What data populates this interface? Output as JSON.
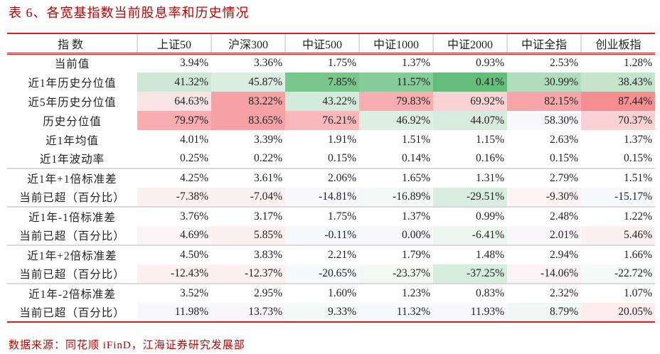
{
  "title": "表 6、各宽基指数当前股息率和历史情况",
  "header": [
    "指数",
    "上证50",
    "沪深300",
    "中证500",
    "中证1000",
    "中证2000",
    "中证全指",
    "创业板指"
  ],
  "rows": [
    {
      "label": "当前值",
      "values": [
        "3.94%",
        "3.36%",
        "1.75%",
        "1.37%",
        "0.93%",
        "2.53%",
        "1.28%"
      ],
      "colors": [
        "",
        "",
        "",
        "",
        "",
        "",
        ""
      ]
    },
    {
      "label": "近1年历史分位值",
      "values": [
        "41.32%",
        "45.87%",
        "7.85%",
        "11.57%",
        "0.41%",
        "30.99%",
        "38.43%"
      ],
      "colors": [
        "#cfe8d6",
        "#dcede2",
        "#78c68c",
        "#86cc98",
        "#64bd7a",
        "#b1dcbd",
        "#c4e4cc"
      ]
    },
    {
      "label": "近5年历史分位值",
      "values": [
        "64.63%",
        "83.22%",
        "43.22%",
        "79.83%",
        "69.92%",
        "82.15%",
        "87.44%"
      ],
      "colors": [
        "#fbe4e6",
        "#f6a1a4",
        "#d4ebdb",
        "#f8adb0",
        "#fbd3d5",
        "#f7a5a8",
        "#f58e91"
      ]
    },
    {
      "label": "历史分位值",
      "values": [
        "79.97%",
        "83.65%",
        "76.21%",
        "46.92%",
        "44.07%",
        "58.30%",
        "70.37%"
      ],
      "colors": [
        "#f8adb0",
        "#f6a1a4",
        "#f9b9bc",
        "#deeee3",
        "#d7ecdd",
        "#f9f9fd",
        "#fbd1d3"
      ]
    },
    {
      "label": "近1年均值",
      "values": [
        "4.01%",
        "3.39%",
        "1.91%",
        "1.51%",
        "1.15%",
        "2.63%",
        "1.37%"
      ],
      "colors": [
        "",
        "",
        "",
        "",
        "",
        "",
        ""
      ]
    },
    {
      "label": "近1年波动率",
      "values": [
        "0.25%",
        "0.22%",
        "0.15%",
        "0.14%",
        "0.16%",
        "0.15%",
        "0.15%"
      ],
      "colors": [
        "",
        "",
        "",
        "",
        "",
        "",
        ""
      ]
    },
    {
      "label": "近1年+1倍标准差",
      "values": [
        "4.25%",
        "3.61%",
        "2.06%",
        "1.65%",
        "1.31%",
        "2.79%",
        "1.51%"
      ],
      "colors": [
        "",
        "",
        "",
        "",
        "",
        "",
        ""
      ],
      "sep": true
    },
    {
      "label": "当前已超（百分比）",
      "values": [
        "-7.38%",
        "-7.04%",
        "-14.81%",
        "-16.89%",
        "-29.51%",
        "-9.30%",
        "-15.17%"
      ],
      "colors": [
        "#fcf0f1",
        "#fcf1f2",
        "#f9f9fd",
        "#f4f8f6",
        "#d9eee0",
        "#fcf4f5",
        "#f8f9fc"
      ]
    },
    {
      "label": "近1年-1倍标准差",
      "values": [
        "3.76%",
        "3.17%",
        "1.75%",
        "1.37%",
        "0.99%",
        "2.48%",
        "1.22%"
      ],
      "colors": [
        "",
        "",
        "",
        "",
        "",
        "",
        ""
      ],
      "sep": true
    },
    {
      "label": "当前已超（百分比）",
      "values": [
        "4.69%",
        "5.85%",
        "-0.11%",
        "0.00%",
        "-6.41%",
        "2.01%",
        "5.46%"
      ],
      "colors": [
        "#fbf4f6",
        "#fcf0f1",
        "#f7f8fc",
        "#f8f8fc",
        "#edf6f0",
        "#f9f7fa",
        "#fcf1f2"
      ]
    },
    {
      "label": "近1年+2倍标准差",
      "values": [
        "4.50%",
        "3.83%",
        "2.21%",
        "1.79%",
        "1.48%",
        "2.94%",
        "1.66%"
      ],
      "colors": [
        "",
        "",
        "",
        "",
        "",
        "",
        ""
      ],
      "sep": true
    },
    {
      "label": "当前已超（百分比）",
      "values": [
        "-12.43%",
        "-12.37%",
        "-20.65%",
        "-23.37%",
        "-37.25%",
        "-14.06%",
        "-22.72%"
      ],
      "colors": [
        "#fcf0f1",
        "#fcf0f1",
        "#f8f9fc",
        "#f3f8f5",
        "#d6ecdc",
        "#fbf3f5",
        "#f5f9f7"
      ]
    },
    {
      "label": "近1年-2倍标准差",
      "values": [
        "3.52%",
        "2.95%",
        "1.60%",
        "1.23%",
        "0.83%",
        "2.32%",
        "1.07%"
      ],
      "colors": [
        "",
        "",
        "",
        "",
        "",
        "",
        ""
      ],
      "sep": true
    },
    {
      "label": "当前已超（百分比）",
      "values": [
        "11.98%",
        "13.73%",
        "9.33%",
        "11.32%",
        "11.93%",
        "8.79%",
        "20.05%"
      ],
      "colors": [
        "#f8f8fc",
        "#f9f6f9",
        "#f4f8f7",
        "#f7f8fb",
        "#f8f8fc",
        "#f2f7f5",
        "#fcecee"
      ]
    }
  ],
  "source": "数据来源：同花顺 iFinD，江海证券研究发展部",
  "accent_color": "#d81e1e"
}
